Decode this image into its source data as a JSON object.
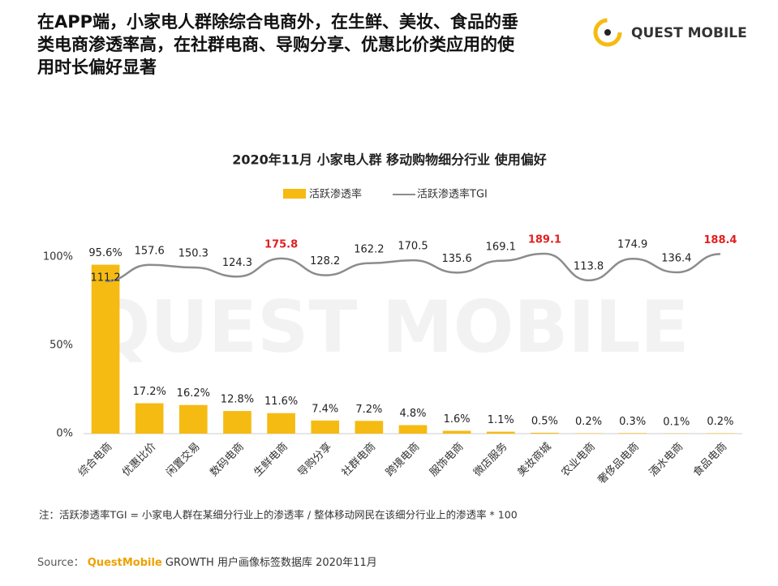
{
  "header": {
    "lines": [
      "在APP端，小家电人群除综合电商外，在生鲜、美妆、食品的垂",
      "类电商渗透率高，在社群电商、导购分享、优惠比价类应用的使",
      "用时长偏好显著"
    ],
    "logo": "QUEST MOBILE",
    "watermark": "QUEST MOBILE"
  },
  "chart_data": {
    "type": "bar-line",
    "title": "2020年11月 小家电人群 移动购物细分行业 使用偏好",
    "categories": [
      "综合电商",
      "优惠比价",
      "闲置交易",
      "数码电商",
      "生鲜电商",
      "导购分享",
      "社群电商",
      "跨境电商",
      "服饰电商",
      "微店服务",
      "美妆商城",
      "农业电商",
      "奢侈品电商",
      "酒水电商",
      "食品电商"
    ],
    "series": [
      {
        "name": "活跃渗透率",
        "color": "#f5bb12",
        "values": [
          95.6,
          17.2,
          16.2,
          12.8,
          11.6,
          7.4,
          7.2,
          4.8,
          1.6,
          1.1,
          0.5,
          0.2,
          0.3,
          0.1,
          0.2
        ],
        "value_labels": [
          "95.6%",
          "17.2%",
          "16.2%",
          "12.8%",
          "11.6%",
          "7.4%",
          "7.2%",
          "4.8%",
          "1.6%",
          "1.1%",
          "0.5%",
          "0.2%",
          "0.3%",
          "0.1%",
          "0.2%"
        ]
      },
      {
        "name": "活跃渗透率TGI",
        "color": "#8c8c8c",
        "axis": "y2",
        "values": [
          111.2,
          157.6,
          150.3,
          124.3,
          175.8,
          128.2,
          162.2,
          170.5,
          135.6,
          169.1,
          189.1,
          113.8,
          174.9,
          136.4,
          188.4
        ],
        "highlight_color": "#e02020",
        "highlighted": [
          4,
          10,
          14
        ]
      }
    ],
    "ylim": [
      0,
      100
    ],
    "yticks": [
      {
        "value": 0,
        "label": "0%"
      },
      {
        "value": 50,
        "label": "50%"
      },
      {
        "value": 100,
        "label": "100%"
      }
    ],
    "y2lim": [
      -320,
      180
    ],
    "legend": "top",
    "note": "注：活跃渗透率TGI = 小家电人群在某细分行业上的渗透率 / 整体移动网民在该细分行业上的渗透率 * 100",
    "source": [
      "Source：",
      "QuestMobile",
      "GROWTH 用户画像标签数据库 2020年11月"
    ]
  }
}
